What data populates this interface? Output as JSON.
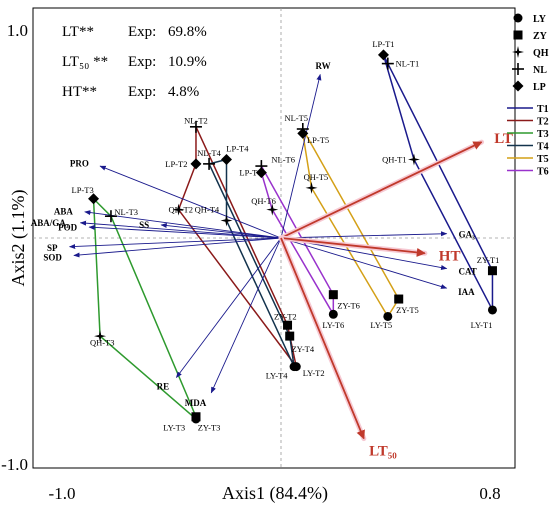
{
  "chart_data": {
    "type": "scatter",
    "subtype": "biplot-rda",
    "xlabel": "Axis1 (84.4%)",
    "ylabel": "Axis2 (1.1%)",
    "xlim": [
      -1.0,
      1.0
    ],
    "ylim": [
      -1.0,
      1.0
    ],
    "x_tick_labels": [
      "-1.0",
      "0.8"
    ],
    "y_tick_labels": [
      "1.0",
      "-1.0"
    ],
    "zero_lines": "dashed",
    "explained": [
      {
        "label": "LT**",
        "exp_label": "Exp:",
        "value": "69.8%"
      },
      {
        "label": "LT₅₀ **",
        "exp_label": "Exp:",
        "value": "10.9%"
      },
      {
        "label": "HT**",
        "exp_label": "Exp:",
        "value": "4.8%"
      }
    ],
    "legend_position": "top-right",
    "legend_markers": [
      {
        "label": "LY",
        "shape": "circle"
      },
      {
        "label": "ZY",
        "shape": "square"
      },
      {
        "label": "QH",
        "shape": "star4"
      },
      {
        "label": "NL",
        "shape": "plus"
      },
      {
        "label": "LP",
        "shape": "diamond"
      }
    ],
    "legend_lines": [
      {
        "label": "T1",
        "color": "#1a1a8c"
      },
      {
        "label": "T2",
        "color": "#8b1a1a"
      },
      {
        "label": "T3",
        "color": "#2e9a2e"
      },
      {
        "label": "T4",
        "color": "#13334d"
      },
      {
        "label": "T5",
        "color": "#d4a017"
      },
      {
        "label": "T6",
        "color": "#9932cc"
      }
    ],
    "response_vectors": [
      {
        "label": "LT",
        "x": 0.92,
        "y": 0.44,
        "color": "#c0392b"
      },
      {
        "label": "HT",
        "x": 0.66,
        "y": -0.07,
        "color": "#c0392b"
      },
      {
        "label": "LT₅₀",
        "x": 0.38,
        "y": -0.92,
        "color": "#c0392b"
      }
    ],
    "variable_vectors": [
      {
        "label": "RW",
        "x": 0.18,
        "y": 0.75
      },
      {
        "label": "PRO",
        "x": -0.83,
        "y": 0.33
      },
      {
        "label": "ABA",
        "x": -0.9,
        "y": 0.12
      },
      {
        "label": "ABA/GA₃",
        "x": -0.92,
        "y": 0.07
      },
      {
        "label": "SP",
        "x": -0.97,
        "y": -0.04
      },
      {
        "label": "SOD",
        "x": -0.95,
        "y": -0.08
      },
      {
        "label": "POD",
        "x": -0.88,
        "y": 0.05
      },
      {
        "label": "SS",
        "x": -0.55,
        "y": 0.06
      },
      {
        "label": "GA₃",
        "x": 0.76,
        "y": 0.02
      },
      {
        "label": "CAT",
        "x": 0.76,
        "y": -0.14
      },
      {
        "label": "IAA",
        "x": 0.76,
        "y": -0.23
      },
      {
        "label": "RE",
        "x": -0.48,
        "y": -0.64
      },
      {
        "label": "MDA",
        "x": -0.32,
        "y": -0.71
      }
    ],
    "points": [
      {
        "id": "LY-T1",
        "label": "LY-T1",
        "type": "LY",
        "group": "T1",
        "x": 0.97,
        "y": -0.33,
        "lx": 0.92,
        "ly": -0.4
      },
      {
        "id": "ZY-T1",
        "label": "ZY-T1",
        "type": "ZY",
        "group": "T1",
        "x": 0.97,
        "y": -0.15,
        "lx": 0.95,
        "ly": -0.1
      },
      {
        "id": "QH-T1",
        "label": "QH-T1",
        "type": "QH",
        "group": "T1",
        "x": 0.61,
        "y": 0.36,
        "lx": 0.52,
        "ly": 0.36
      },
      {
        "id": "NL-T1",
        "label": "NL-T1",
        "type": "NL",
        "group": "T1",
        "x": 0.49,
        "y": 0.8,
        "lx": 0.58,
        "ly": 0.8
      },
      {
        "id": "LP-T1",
        "label": "LP-T1",
        "type": "LP",
        "group": "T1",
        "x": 0.47,
        "y": 0.84,
        "lx": 0.47,
        "ly": 0.89
      },
      {
        "id": "LY-T2",
        "label": "LY-T2",
        "type": "LY",
        "group": "T2",
        "x": 0.07,
        "y": -0.59,
        "lx": 0.15,
        "ly": -0.62
      },
      {
        "id": "ZY-T2",
        "label": "ZY-T2",
        "type": "ZY",
        "group": "T2",
        "x": 0.03,
        "y": -0.4,
        "lx": 0.02,
        "ly": -0.36
      },
      {
        "id": "QH-T2",
        "label": "QH-T2",
        "type": "QH",
        "group": "T2",
        "x": -0.47,
        "y": 0.13,
        "lx": -0.46,
        "ly": 0.13
      },
      {
        "id": "NL-T2",
        "label": "NL-T2",
        "type": "NL",
        "group": "T2",
        "x": -0.39,
        "y": 0.51,
        "lx": -0.39,
        "ly": 0.54
      },
      {
        "id": "LP-T2",
        "label": "LP-T2",
        "type": "LP",
        "group": "T2",
        "x": -0.39,
        "y": 0.34,
        "lx": -0.48,
        "ly": 0.34
      },
      {
        "id": "LY-T3",
        "label": "LY-T3",
        "type": "LY",
        "group": "T3",
        "x": -0.39,
        "y": -0.83,
        "lx": -0.49,
        "ly": -0.87
      },
      {
        "id": "ZY-T3",
        "label": "ZY-T3",
        "type": "ZY",
        "group": "T3",
        "x": -0.39,
        "y": -0.82,
        "lx": -0.33,
        "ly": -0.87
      },
      {
        "id": "QH-T3",
        "label": "QH-T3",
        "type": "QH",
        "group": "T3",
        "x": -0.83,
        "y": -0.45,
        "lx": -0.82,
        "ly": -0.48
      },
      {
        "id": "NL-T3",
        "label": "NL-T3",
        "type": "NL",
        "group": "T3",
        "x": -0.78,
        "y": 0.1,
        "lx": -0.71,
        "ly": 0.12
      },
      {
        "id": "LP-T3",
        "label": "LP-T3",
        "type": "LP",
        "group": "T3",
        "x": -0.86,
        "y": 0.18,
        "lx": -0.91,
        "ly": 0.22
      },
      {
        "id": "LY-T4",
        "label": "LY-T4",
        "type": "LY",
        "group": "T4",
        "x": 0.06,
        "y": -0.59,
        "lx": -0.02,
        "ly": -0.63
      },
      {
        "id": "ZY-T4",
        "label": "ZY-T4",
        "type": "ZY",
        "group": "T4",
        "x": 0.04,
        "y": -0.45,
        "lx": 0.1,
        "ly": -0.51
      },
      {
        "id": "QH-T4",
        "label": "QH-T4",
        "type": "QH",
        "group": "T4",
        "x": -0.25,
        "y": 0.08,
        "lx": -0.34,
        "ly": 0.13
      },
      {
        "id": "NL-T4",
        "label": "NL-T4",
        "type": "NL",
        "group": "T4",
        "x": -0.33,
        "y": 0.34,
        "lx": -0.33,
        "ly": 0.39
      },
      {
        "id": "LP-T4",
        "label": "LP-T4",
        "type": "LP",
        "group": "T4",
        "x": -0.25,
        "y": 0.36,
        "lx": -0.2,
        "ly": 0.41
      },
      {
        "id": "LY-T5",
        "label": "LY-T5",
        "type": "LY",
        "group": "T5",
        "x": 0.49,
        "y": -0.36,
        "lx": 0.46,
        "ly": -0.4
      },
      {
        "id": "ZY-T5",
        "label": "ZY-T5",
        "type": "ZY",
        "group": "T5",
        "x": 0.54,
        "y": -0.28,
        "lx": 0.58,
        "ly": -0.33
      },
      {
        "id": "QH-T5",
        "label": "QH-T5",
        "type": "QH",
        "group": "T5",
        "x": 0.14,
        "y": 0.23,
        "lx": 0.16,
        "ly": 0.28
      },
      {
        "id": "NL-T5",
        "label": "NL-T5",
        "type": "NL",
        "group": "T5",
        "x": 0.1,
        "y": 0.5,
        "lx": 0.07,
        "ly": 0.55
      },
      {
        "id": "LP-T5",
        "label": "LP-T5",
        "type": "LP",
        "group": "T5",
        "x": 0.1,
        "y": 0.48,
        "lx": 0.17,
        "ly": 0.45
      },
      {
        "id": "LY-T6",
        "label": "LY-T6",
        "type": "LY",
        "group": "T6",
        "x": 0.24,
        "y": -0.35,
        "lx": 0.24,
        "ly": -0.4
      },
      {
        "id": "ZY-T6",
        "label": "ZY-T6",
        "type": "ZY",
        "group": "T6",
        "x": 0.24,
        "y": -0.26,
        "lx": 0.31,
        "ly": -0.31
      },
      {
        "id": "QH-T6",
        "label": "QH-T6",
        "type": "QH",
        "group": "T6",
        "x": -0.04,
        "y": 0.13,
        "lx": -0.08,
        "ly": 0.17
      },
      {
        "id": "NL-T6",
        "label": "NL-T6",
        "type": "NL",
        "group": "T6",
        "x": -0.09,
        "y": 0.33,
        "lx": 0.01,
        "ly": 0.36
      },
      {
        "id": "LP-T6",
        "label": "LP-T6",
        "type": "LP",
        "group": "T6",
        "x": -0.09,
        "y": 0.3,
        "lx": -0.14,
        "ly": 0.3
      }
    ]
  }
}
